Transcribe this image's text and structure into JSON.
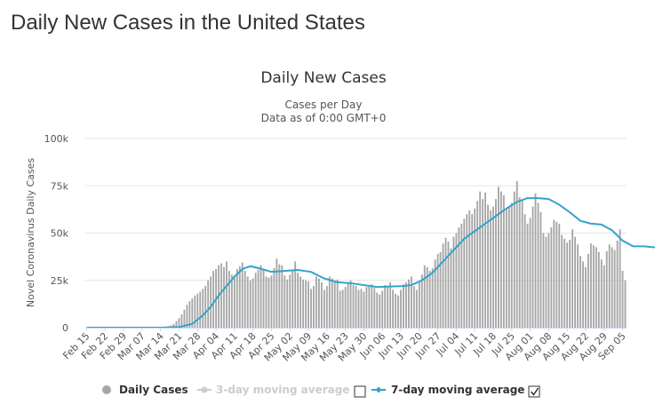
{
  "page": {
    "title": "Daily New Cases in the United States"
  },
  "chart_data": {
    "type": "bar",
    "title": "Daily New Cases",
    "subtitle_lines": [
      "Cases per Day",
      "Data as of 0:00 GMT+0"
    ],
    "ylabel": "Novel Coronavirus Daily Cases",
    "ylim": [
      0,
      100000
    ],
    "yticks": [
      {
        "value": 0,
        "label": "0"
      },
      {
        "value": 25000,
        "label": "25k"
      },
      {
        "value": 50000,
        "label": "50k"
      },
      {
        "value": 75000,
        "label": "75k"
      },
      {
        "value": 100000,
        "label": "100k"
      }
    ],
    "x_tick_labels": [
      "Feb 15",
      "Feb 22",
      "Feb 29",
      "Mar 07",
      "Mar 14",
      "Mar 21",
      "Mar 28",
      "Apr 04",
      "Apr 11",
      "Apr 18",
      "Apr 25",
      "May 02",
      "May 09",
      "May 16",
      "May 23",
      "May 30",
      "Jun 06",
      "Jun 13",
      "Jun 20",
      "Jun 27",
      "Jul 04",
      "Jul 11",
      "Jul 18",
      "Jul 25",
      "Aug 01",
      "Aug 08",
      "Aug 15",
      "Aug 22",
      "Aug 29",
      "Sep 05"
    ],
    "grid": true,
    "colors": {
      "bars": "#a6a6a6",
      "moving_average": "#33a3c9",
      "legend_inactive": "#cccccc"
    },
    "weekly_daily_cases": [
      [
        0,
        0,
        0,
        0,
        0,
        0,
        0
      ],
      [
        0,
        0,
        0,
        0,
        0,
        0,
        0
      ],
      [
        0,
        0,
        0,
        0,
        0,
        0,
        10
      ],
      [
        20,
        30,
        50,
        60,
        100,
        130,
        160
      ],
      [
        250,
        400,
        600,
        800,
        1300,
        2000,
        3500
      ],
      [
        5000,
        7000,
        9500,
        12000,
        14000,
        15500,
        17000
      ],
      [
        18000,
        19000,
        20500,
        22000,
        25000,
        27000,
        30000
      ],
      [
        31000,
        33000,
        34000,
        32000,
        35000,
        30000,
        28000
      ],
      [
        27000,
        31000,
        32500,
        34500,
        30000,
        27000,
        25000
      ],
      [
        26000,
        29000,
        30500,
        33000,
        31000,
        27000,
        26500
      ],
      [
        27500,
        31500,
        36500,
        33500,
        33000,
        27500,
        25500
      ],
      [
        28000,
        30500,
        35000,
        29000,
        27000,
        25500,
        25000
      ],
      [
        24500,
        20500,
        22000,
        27000,
        26000,
        24000,
        20000
      ],
      [
        22000,
        27000,
        26000,
        24000,
        25500,
        19500,
        20000
      ],
      [
        21500,
        24000,
        25000,
        22500,
        22000,
        20000,
        20500
      ],
      [
        19000,
        21500,
        22000,
        23000,
        21000,
        18500,
        17500
      ],
      [
        19500,
        22500,
        22000,
        24000,
        20000,
        18000,
        17000
      ],
      [
        20000,
        23000,
        24000,
        25500,
        27000,
        22000,
        20000
      ],
      [
        24000,
        28000,
        33000,
        32000,
        30000,
        31500,
        36000
      ],
      [
        39000,
        40000,
        44500,
        47500,
        45500,
        42000,
        48000
      ],
      [
        50000,
        53000,
        55000,
        57500,
        60000,
        62000,
        60000
      ],
      [
        63000,
        67000,
        72000,
        68000,
        71500,
        65000,
        62000
      ],
      [
        64000,
        68000,
        74500,
        72000,
        70000,
        63000,
        64000
      ],
      [
        66000,
        72000,
        77500,
        69000,
        67500,
        60000,
        55000
      ],
      [
        58000,
        64000,
        71000,
        66000,
        61000,
        50000,
        48000
      ],
      [
        50000,
        53000,
        57000,
        56000,
        55000,
        49000,
        47000
      ],
      [
        45000,
        46500,
        52000,
        48000,
        44000,
        38000,
        35000
      ],
      [
        32000,
        39000,
        44500,
        43500,
        42500,
        40000,
        36000
      ],
      [
        33000,
        40500,
        44000,
        42500,
        41000,
        46000,
        52000
      ],
      [
        30000,
        25000
      ]
    ],
    "moving_average_7day": [
      {
        "day": 0,
        "value": 0
      },
      {
        "day": 28,
        "value": 0
      },
      {
        "day": 35,
        "value": 300
      },
      {
        "day": 40,
        "value": 2000
      },
      {
        "day": 44,
        "value": 6500
      },
      {
        "day": 47,
        "value": 11000
      },
      {
        "day": 50,
        "value": 17000
      },
      {
        "day": 53,
        "value": 22000
      },
      {
        "day": 56,
        "value": 27000
      },
      {
        "day": 59,
        "value": 31000
      },
      {
        "day": 62,
        "value": 32500
      },
      {
        "day": 65,
        "value": 31500
      },
      {
        "day": 70,
        "value": 29500
      },
      {
        "day": 75,
        "value": 30000
      },
      {
        "day": 80,
        "value": 30500
      },
      {
        "day": 85,
        "value": 29500
      },
      {
        "day": 90,
        "value": 26000
      },
      {
        "day": 95,
        "value": 24000
      },
      {
        "day": 100,
        "value": 23500
      },
      {
        "day": 105,
        "value": 22500
      },
      {
        "day": 110,
        "value": 21500
      },
      {
        "day": 115,
        "value": 21800
      },
      {
        "day": 120,
        "value": 22000
      },
      {
        "day": 123,
        "value": 22500
      },
      {
        "day": 127,
        "value": 25000
      },
      {
        "day": 131,
        "value": 29000
      },
      {
        "day": 135,
        "value": 35000
      },
      {
        "day": 139,
        "value": 41000
      },
      {
        "day": 143,
        "value": 47000
      },
      {
        "day": 147,
        "value": 51000
      },
      {
        "day": 151,
        "value": 55000
      },
      {
        "day": 155,
        "value": 59000
      },
      {
        "day": 159,
        "value": 63000
      },
      {
        "day": 163,
        "value": 66500
      },
      {
        "day": 167,
        "value": 68500
      },
      {
        "day": 171,
        "value": 68500
      },
      {
        "day": 175,
        "value": 68000
      },
      {
        "day": 179,
        "value": 65000
      },
      {
        "day": 183,
        "value": 61000
      },
      {
        "day": 187,
        "value": 56500
      },
      {
        "day": 191,
        "value": 55000
      },
      {
        "day": 195,
        "value": 54500
      },
      {
        "day": 199,
        "value": 51500
      },
      {
        "day": 203,
        "value": 46000
      },
      {
        "day": 207,
        "value": 43000
      },
      {
        "day": 211,
        "value": 43000
      },
      {
        "day": 215,
        "value": 42500
      },
      {
        "day": 219,
        "value": 41500
      },
      {
        "day": 223,
        "value": 41500
      },
      {
        "day": 225,
        "value": 40000
      }
    ],
    "legend": {
      "placement": "bottom",
      "items": [
        {
          "label": "Daily Cases",
          "active": true
        },
        {
          "label": "3-day moving average",
          "active": false
        },
        {
          "label": "7-day moving average",
          "active": true
        }
      ]
    }
  }
}
